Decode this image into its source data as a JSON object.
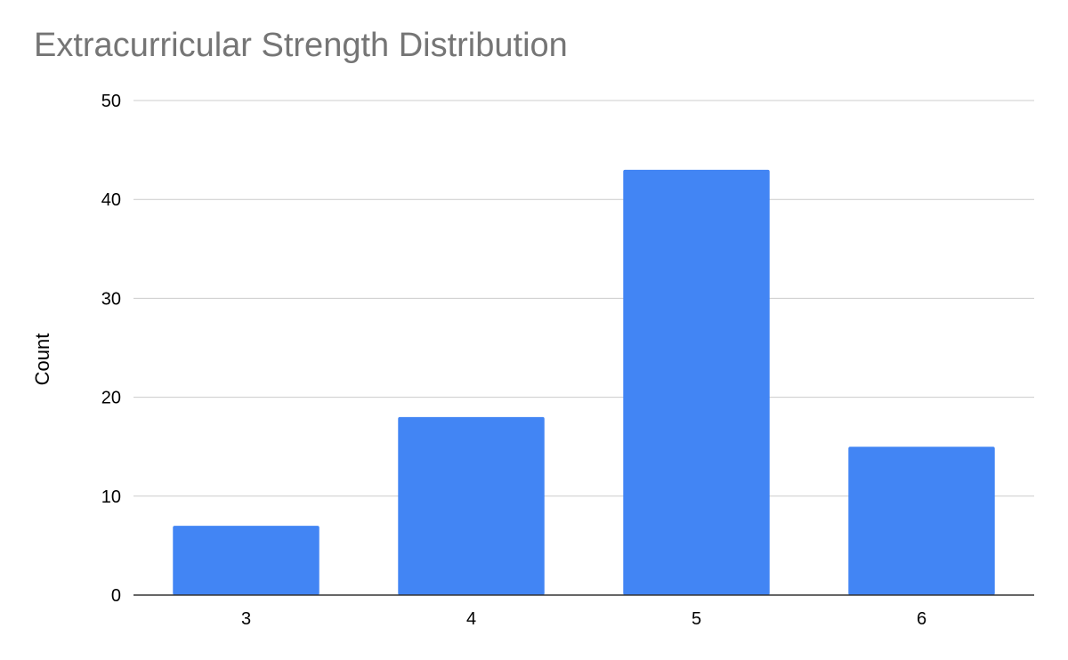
{
  "chart_data": {
    "type": "bar",
    "title": "Extracurricular Strength Distribution",
    "xlabel": "",
    "ylabel": "Count",
    "categories": [
      "3",
      "4",
      "5",
      "6"
    ],
    "values": [
      7,
      18,
      43,
      15
    ],
    "ylim": [
      0,
      50
    ],
    "yticks": [
      0,
      10,
      20,
      30,
      40,
      50
    ],
    "grid": true,
    "legend": "none",
    "colors": {
      "bar": "#4285f4",
      "grid": "#cccccc",
      "axis": "#333333",
      "title": "#757575"
    }
  }
}
